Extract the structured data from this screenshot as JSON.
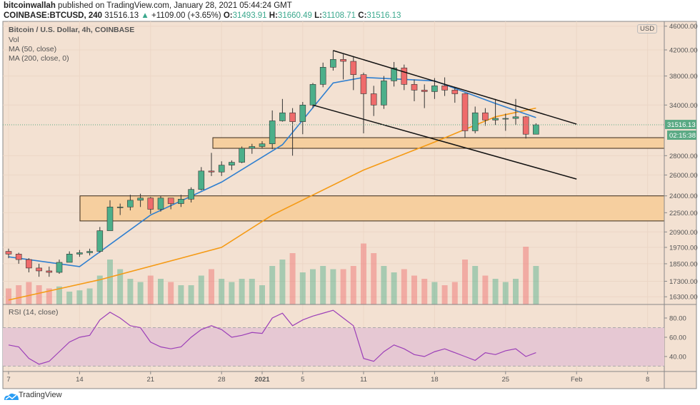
{
  "header": {
    "author": "bitcoinwallah",
    "published": "published on TradingView.com, January 28, 2021 05:44:24 GMT",
    "symbol": "COINBASE:BTCUSD, 240",
    "last": "31516.13",
    "change": "+1109.00 (+3.65%)",
    "o_label": "O:",
    "o": "31493.91",
    "h_label": "H:",
    "h": "31660.49",
    "l_label": "L:",
    "l": "31108.71",
    "c_label": "C:",
    "c": "31516.13"
  },
  "legend": {
    "title": "Bitcoin / U.S. Dollar, 4h, COINBASE",
    "vol": "Vol",
    "ma50": "MA (50, close)",
    "ma200": "MA (200, close, 0)",
    "rsi": "RSI (14, close)"
  },
  "currency_badge": "USD",
  "price_badge": "31516.13",
  "countdown_badge": "02:15:38",
  "brand": "TradingView",
  "colors": {
    "background": "#f3e1d2",
    "up": "#4caf8a",
    "down": "#ef6b6b",
    "ma50": "#2f7fd0",
    "ma200": "#f59a14",
    "zone": "#f6cf9f",
    "rsi_line": "#9c3fb8",
    "rsi_band": "#e6c8d3",
    "price_badge": "#5aa984"
  },
  "chart_data": {
    "type": "candlestick",
    "title": "Bitcoin / U.S. Dollar, 4h, COINBASE",
    "y_scale": "log",
    "ylim": [
      16000,
      46000
    ],
    "grid": true,
    "y_ticks": [
      "46000.00",
      "42000.00",
      "38000.00",
      "34000.00",
      "28000.00",
      "26000.00",
      "24000.00",
      "22500.00",
      "20900.00",
      "19700.00",
      "18500.00",
      "17300.00",
      "16300.00"
    ],
    "x_ticks": [
      "7",
      "14",
      "21",
      "28",
      "2021",
      "5",
      "11",
      "18",
      "25",
      "Feb",
      "8"
    ],
    "dates": [
      "Dec 7",
      "Dec 8",
      "Dec 9",
      "Dec 10",
      "Dec 11",
      "Dec 12",
      "Dec 13",
      "Dec 14",
      "Dec 15",
      "Dec 16",
      "Dec 17",
      "Dec 18",
      "Dec 19",
      "Dec 20",
      "Dec 21",
      "Dec 22",
      "Dec 23",
      "Dec 24",
      "Dec 25",
      "Dec 26",
      "Dec 27",
      "Dec 28",
      "Dec 29",
      "Dec 30",
      "Dec 31",
      "Jan 1",
      "Jan 2",
      "Jan 3",
      "Jan 4",
      "Jan 5",
      "Jan 6",
      "Jan 7",
      "Jan 8",
      "Jan 9",
      "Jan 10",
      "Jan 11",
      "Jan 12",
      "Jan 13",
      "Jan 14",
      "Jan 15",
      "Jan 16",
      "Jan 17",
      "Jan 18",
      "Jan 19",
      "Jan 20",
      "Jan 21",
      "Jan 22",
      "Jan 23",
      "Jan 24",
      "Jan 25",
      "Jan 26",
      "Jan 27",
      "Jan 28"
    ],
    "first_open": 19400,
    "close": [
      19200,
      18800,
      18200,
      18000,
      17900,
      18600,
      19200,
      19300,
      19400,
      21000,
      23000,
      23000,
      23600,
      23800,
      22800,
      23800,
      23300,
      23700,
      24600,
      26400,
      26300,
      27000,
      27300,
      28800,
      29000,
      29300,
      32000,
      33000,
      31900,
      34000,
      36800,
      39300,
      40500,
      40200,
      38200,
      35500,
      34000,
      37300,
      39200,
      36800,
      36000,
      35800,
      36600,
      36000,
      35500,
      30800,
      33000,
      32100,
      32300,
      32300,
      32500,
      30400,
      31516
    ],
    "high": [
      19600,
      19300,
      18900,
      18500,
      18300,
      18800,
      19400,
      19500,
      19600,
      21300,
      23600,
      23300,
      24100,
      24200,
      23900,
      24000,
      23800,
      24100,
      24800,
      26800,
      28300,
      27400,
      27500,
      29000,
      29300,
      29600,
      33300,
      34800,
      33600,
      34400,
      37000,
      40000,
      41900,
      41300,
      41000,
      38500,
      36600,
      38000,
      40100,
      39700,
      37500,
      36800,
      37700,
      37800,
      36400,
      35600,
      33800,
      33600,
      34800,
      32900,
      34800,
      32600,
      31700
    ],
    "low": [
      18900,
      18500,
      17900,
      17600,
      17600,
      17800,
      18900,
      19000,
      19100,
      19300,
      21000,
      22300,
      22700,
      23000,
      22400,
      22600,
      22800,
      23000,
      23400,
      24500,
      25900,
      25900,
      26500,
      27200,
      28200,
      28800,
      28700,
      31900,
      28000,
      30400,
      33600,
      36400,
      38800,
      37500,
      36000,
      30500,
      32600,
      33500,
      36500,
      36000,
      34500,
      33600,
      34800,
      35200,
      34300,
      30000,
      30500,
      31400,
      31500,
      30800,
      31500,
      29900,
      30800
    ],
    "volume_relative": [
      25,
      30,
      35,
      30,
      25,
      28,
      20,
      22,
      25,
      45,
      70,
      55,
      40,
      35,
      45,
      40,
      35,
      30,
      30,
      45,
      55,
      40,
      35,
      40,
      40,
      30,
      60,
      70,
      80,
      50,
      55,
      60,
      55,
      55,
      60,
      95,
      80,
      60,
      50,
      55,
      45,
      40,
      35,
      30,
      35,
      70,
      60,
      45,
      40,
      35,
      40,
      90,
      60
    ],
    "ma50": [
      [
        "Dec 7",
        19000
      ],
      [
        "Dec 14",
        18300
      ],
      [
        "Dec 21",
        22300
      ],
      [
        "Dec 28",
        25300
      ],
      [
        "Jan 3",
        29200
      ],
      [
        "Jan 8",
        37000
      ],
      [
        "Jan 11",
        37800
      ],
      [
        "Jan 18",
        37300
      ],
      [
        "Jan 24",
        34200
      ],
      [
        "Jan 28",
        32400
      ]
    ],
    "ma200": [
      [
        "Dec 7",
        16100
      ],
      [
        "Dec 16",
        17400
      ],
      [
        "Dec 28",
        19700
      ],
      [
        "Jan 2",
        22300
      ],
      [
        "Jan 11",
        26500
      ],
      [
        "Jan 18",
        29500
      ],
      [
        "Jan 24",
        32500
      ],
      [
        "Jan 28",
        33600
      ]
    ],
    "zones": [
      [
        28800,
        30000
      ],
      [
        21800,
        24000
      ]
    ],
    "channel": {
      "upper": [
        [
          "Jan 8",
          41900
        ],
        [
          "Feb 1",
          31600
        ]
      ],
      "lower": [
        [
          "Jan 6",
          34000
        ],
        [
          "Feb 1",
          25600
        ]
      ]
    },
    "current_price": 31516.13,
    "rsi": {
      "ylim": [
        25,
        93
      ],
      "y_ticks": [
        "80.00",
        "60.00",
        "40.00"
      ],
      "band": [
        30,
        70
      ],
      "values": [
        52,
        50,
        38,
        32,
        35,
        45,
        55,
        60,
        62,
        78,
        86,
        80,
        72,
        70,
        55,
        50,
        48,
        50,
        60,
        68,
        72,
        68,
        60,
        62,
        65,
        64,
        80,
        85,
        72,
        78,
        82,
        85,
        88,
        80,
        72,
        38,
        35,
        45,
        52,
        48,
        42,
        40,
        45,
        48,
        44,
        40,
        36,
        44,
        42,
        46,
        48,
        40,
        44
      ]
    }
  }
}
